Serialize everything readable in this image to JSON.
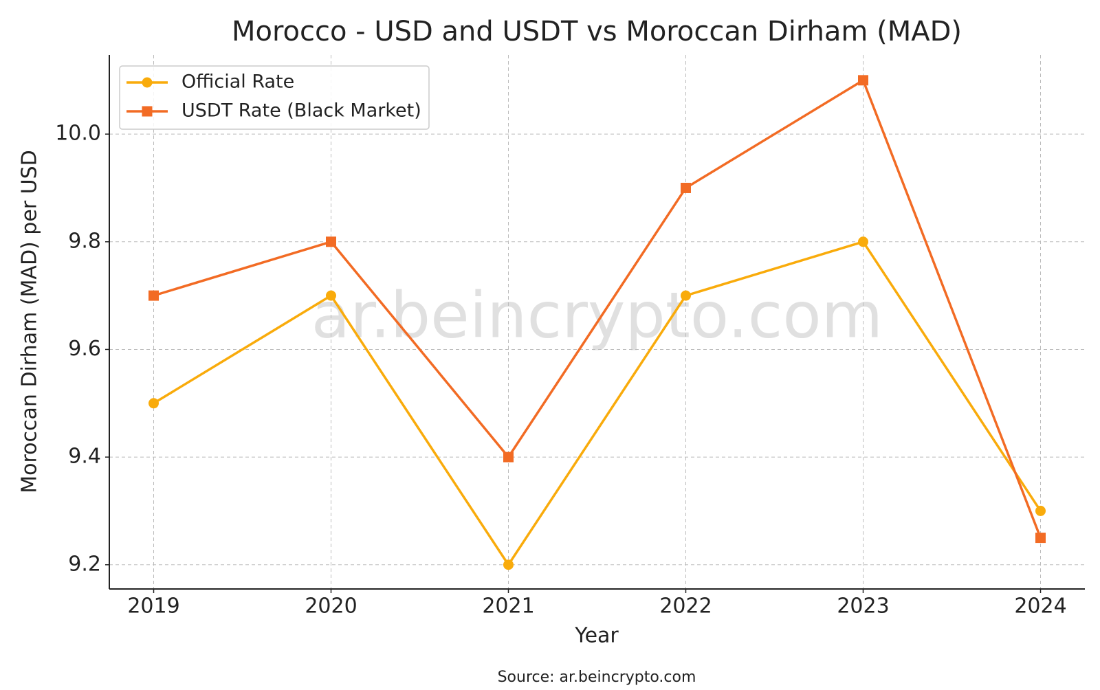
{
  "chart_data": {
    "type": "line",
    "title": "Morocco - USD and USDT vs Moroccan Dirham (MAD)",
    "x_label": "Year",
    "y_label": "Moroccan Dirham (MAD) per USD",
    "watermark": "ar.beincrypto.com",
    "source": "Source: ar.beincrypto.com",
    "x": [
      2019,
      2020,
      2021,
      2022,
      2023,
      2024
    ],
    "series": [
      {
        "name": "Official Rate",
        "color": "#f9ab0b",
        "marker": "circle",
        "values": [
          9.5,
          9.7,
          9.2,
          9.7,
          9.8,
          9.3
        ]
      },
      {
        "name": "USDT Rate (Black Market)",
        "color": "#f26b24",
        "marker": "square",
        "values": [
          9.7,
          9.8,
          9.4,
          9.9,
          10.1,
          9.25
        ]
      }
    ],
    "xlim": [
      2018.75,
      2024.25
    ],
    "xticks": [
      2019,
      2020,
      2021,
      2022,
      2023,
      2024
    ],
    "ylim": [
      9.155,
      10.147
    ],
    "yticks": [
      9.2,
      9.4,
      9.6,
      9.8,
      {
        "value": 10,
        "label": "10.0"
      }
    ],
    "grid": true,
    "legend": "upper left"
  }
}
